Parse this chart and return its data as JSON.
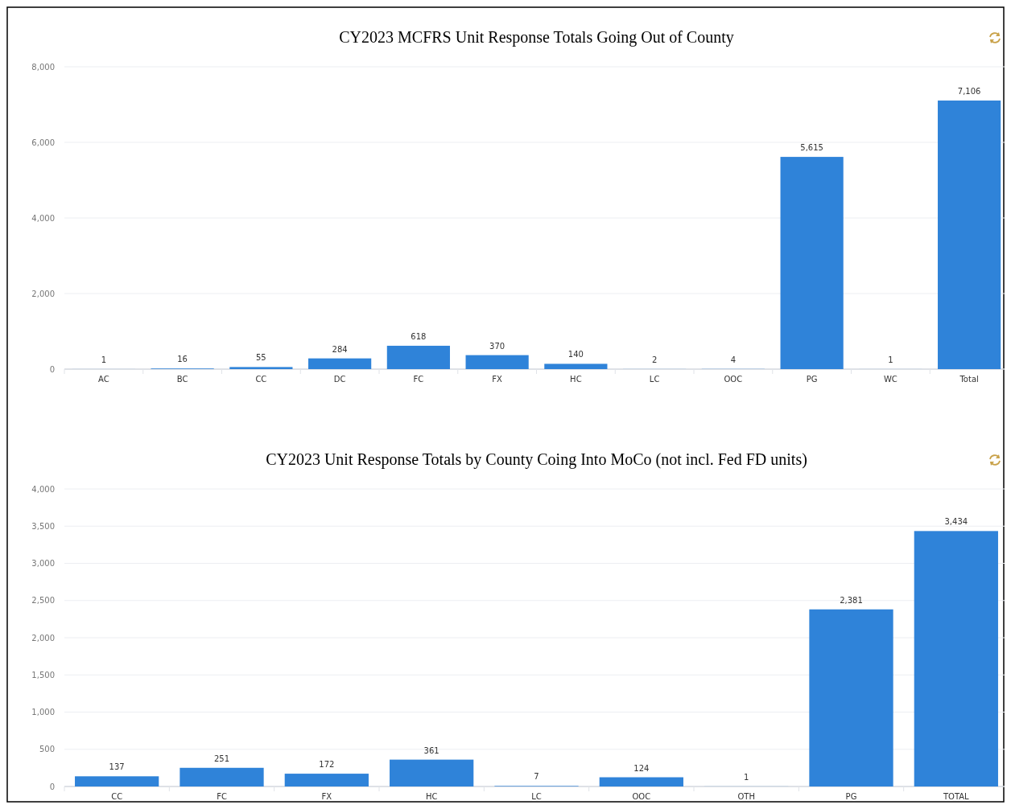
{
  "chart_data": [
    {
      "type": "bar",
      "title": "CY2023 MCFRS Unit Response Totals Going Out of County",
      "categories": [
        "AC",
        "BC",
        "CC",
        "DC",
        "FC",
        "FX",
        "HC",
        "LC",
        "OOC",
        "PG",
        "WC",
        "Total"
      ],
      "values": [
        1,
        16,
        55,
        284,
        618,
        370,
        140,
        2,
        4,
        5615,
        1,
        7106
      ],
      "value_labels": [
        "1",
        "16",
        "55",
        "284",
        "618",
        "370",
        "140",
        "2",
        "4",
        "5,615",
        "1",
        "7,106"
      ],
      "color": "#2f83d9",
      "ylim": [
        0,
        8000
      ],
      "yticks": [
        {
          "value": 0,
          "label": "0"
        },
        {
          "value": 2000,
          "label": "2,000"
        },
        {
          "value": 4000,
          "label": "4,000"
        },
        {
          "value": 6000,
          "label": "6,000"
        },
        {
          "value": 8000,
          "label": "8,000"
        }
      ],
      "grid": "y"
    },
    {
      "type": "bar",
      "title": "CY2023 Unit Response Totals by County Coing Into MoCo (not incl. Fed FD units)",
      "categories": [
        "CC",
        "FC",
        "FX",
        "HC",
        "LC",
        "OOC",
        "OTH",
        "PG",
        "TOTAL"
      ],
      "values": [
        137,
        251,
        172,
        361,
        7,
        124,
        1,
        2381,
        3434
      ],
      "value_labels": [
        "137",
        "251",
        "172",
        "361",
        "7",
        "124",
        "1",
        "2,381",
        "3,434"
      ],
      "color": "#2f83d9",
      "ylim": [
        0,
        4000
      ],
      "yticks": [
        {
          "value": 0,
          "label": "0"
        },
        {
          "value": 500,
          "label": "500"
        },
        {
          "value": 1000,
          "label": "1,000"
        },
        {
          "value": 1500,
          "label": "1,500"
        },
        {
          "value": 2000,
          "label": "2,000"
        },
        {
          "value": 2500,
          "label": "2,500"
        },
        {
          "value": 3000,
          "label": "3,000"
        },
        {
          "value": 3500,
          "label": "3,500"
        },
        {
          "value": 4000,
          "label": "4,000"
        }
      ],
      "grid": "y"
    }
  ]
}
